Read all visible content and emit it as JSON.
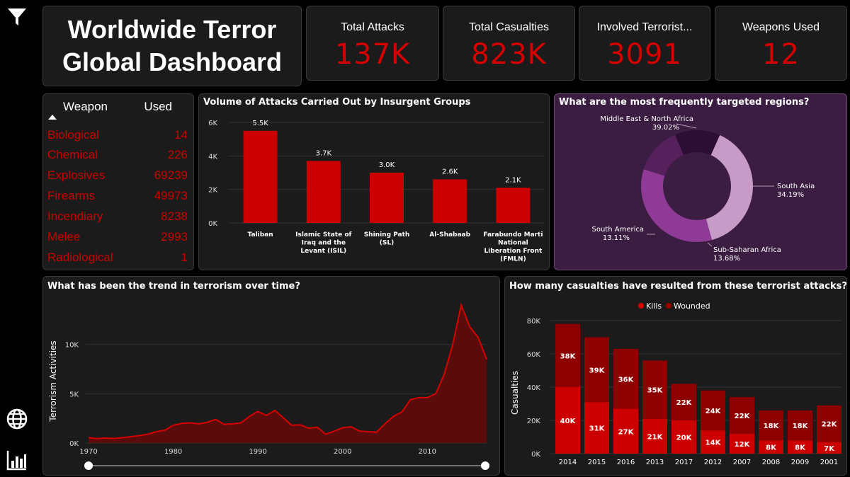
{
  "sidebar": {
    "icons": [
      "filter-icon",
      "globe-icon",
      "bar-chart-icon"
    ]
  },
  "title": {
    "line1": "Worldwide Terror",
    "line2": "Global Dashboard"
  },
  "kpis": [
    {
      "label": "Total Attacks",
      "value": "137K"
    },
    {
      "label": "Total Casualties",
      "value": "823K"
    },
    {
      "label": "Involved Terrorist...",
      "value": "3091"
    },
    {
      "label": "Weapons Used",
      "value": "12"
    }
  ],
  "weapons": {
    "header_name": "Weapon",
    "header_used": "Used",
    "rows": [
      {
        "name": "Biological",
        "used": "14"
      },
      {
        "name": "Chemical",
        "used": "226"
      },
      {
        "name": "Explosives",
        "used": "69239"
      },
      {
        "name": "Firearms",
        "used": "49973"
      },
      {
        "name": "Incendiary",
        "used": "8238"
      },
      {
        "name": "Melee",
        "used": "2993"
      },
      {
        "name": "Radiological",
        "used": "1"
      }
    ]
  },
  "colors": {
    "accent": "#d60000",
    "bar": "#cc0000",
    "dark_red": "#8b0000",
    "panel": "#1b1b1b",
    "donut_panel": "#3c1d42"
  },
  "chart_data": [
    {
      "type": "bar",
      "title": "Volume of Attacks Carried Out by Insurgent Groups",
      "categories": [
        "Taliban",
        "Islamic State of Iraq and the Levant (ISIL)",
        "Shining Path (SL)",
        "Al-Shabaab",
        "Farabundo Marti National Liberation Front (FMLN)"
      ],
      "category_lines": [
        [
          "Taliban"
        ],
        [
          "Islamic State of",
          "Iraq and the",
          "Levant (ISIL)"
        ],
        [
          "Shining Path",
          "(SL)"
        ],
        [
          "Al-Shabaab"
        ],
        [
          "Farabundo Marti",
          "National",
          "Liberation Front",
          "(FMLN)"
        ]
      ],
      "values": [
        5500,
        3700,
        3000,
        2600,
        2100
      ],
      "data_labels": [
        "5.5K",
        "3.7K",
        "3.0K",
        "2.6K",
        "2.1K"
      ],
      "yticks": [
        "0K",
        "2K",
        "4K",
        "6K"
      ],
      "ylim": [
        0,
        6000
      ]
    },
    {
      "type": "pie",
      "title": "What are the most frequently targeted regions?",
      "slices": [
        {
          "label": "Middle East & North Africa",
          "pct": "39.02%",
          "value": 39.02,
          "color": "#c79bc8"
        },
        {
          "label": "South Asia",
          "pct": "34.19%",
          "value": 34.19,
          "color": "#8e3a96"
        },
        {
          "label": "Sub-Saharan Africa",
          "pct": "13.68%",
          "value": 13.68,
          "color": "#55205c"
        },
        {
          "label": "South America",
          "pct": "13.11%",
          "value": 13.11,
          "color": "#2c0d33"
        }
      ]
    },
    {
      "type": "area",
      "title": "What has been the trend in terrorism over time?",
      "ylabel": "Terrorism Activities",
      "xticks": [
        "1970",
        "1980",
        "1990",
        "2000",
        "2010"
      ],
      "yticks": [
        "0K",
        "5K",
        "10K"
      ],
      "ylim": [
        0,
        14000
      ],
      "x": [
        1970,
        1971,
        1972,
        1973,
        1974,
        1975,
        1976,
        1977,
        1978,
        1979,
        1980,
        1981,
        1982,
        1983,
        1984,
        1985,
        1986,
        1987,
        1988,
        1989,
        1990,
        1991,
        1992,
        1994,
        1995,
        1996,
        1997,
        1998,
        1999,
        2000,
        2001,
        2002,
        2003,
        2004,
        2005,
        2006,
        2007,
        2008,
        2009,
        2010,
        2011,
        2012,
        2013,
        2014,
        2015,
        2016,
        2017
      ],
      "y": [
        550,
        450,
        500,
        470,
        550,
        650,
        750,
        900,
        1150,
        1300,
        1800,
        2000,
        2050,
        1950,
        2100,
        2400,
        1900,
        1950,
        2050,
        2700,
        3200,
        2800,
        3300,
        1800,
        1850,
        1500,
        1600,
        900,
        1200,
        1550,
        1650,
        1200,
        1150,
        1100,
        1950,
        2700,
        3150,
        4400,
        4600,
        4600,
        5000,
        7000,
        10000,
        14000,
        11800,
        10700,
        8500
      ]
    },
    {
      "type": "bar",
      "title": "How many casualties have resulted from these terrorist attacks?",
      "ylabel": "Casualties",
      "legend": [
        "Kills",
        "Wounded"
      ],
      "categories": [
        "2014",
        "2015",
        "2016",
        "2013",
        "2017",
        "2012",
        "2007",
        "2008",
        "2009",
        "2001"
      ],
      "series": [
        {
          "name": "Kills",
          "values": [
            40000,
            31000,
            27000,
            21000,
            20000,
            14000,
            12000,
            8000,
            8000,
            7000
          ],
          "labels": [
            "40K",
            "31K",
            "27K",
            "21K",
            "20K",
            "14K",
            "12K",
            "8K",
            "8K",
            "7K"
          ]
        },
        {
          "name": "Wounded",
          "values": [
            38000,
            39000,
            36000,
            35000,
            22000,
            24000,
            22000,
            18000,
            18000,
            22000
          ],
          "labels": [
            "38K",
            "39K",
            "36K",
            "35K",
            "22K",
            "24K",
            "22K",
            "18K",
            "18K",
            "22K"
          ]
        }
      ],
      "yticks": [
        "0K",
        "20K",
        "40K",
        "60K",
        "80K"
      ],
      "ylim": [
        0,
        80000
      ]
    }
  ]
}
